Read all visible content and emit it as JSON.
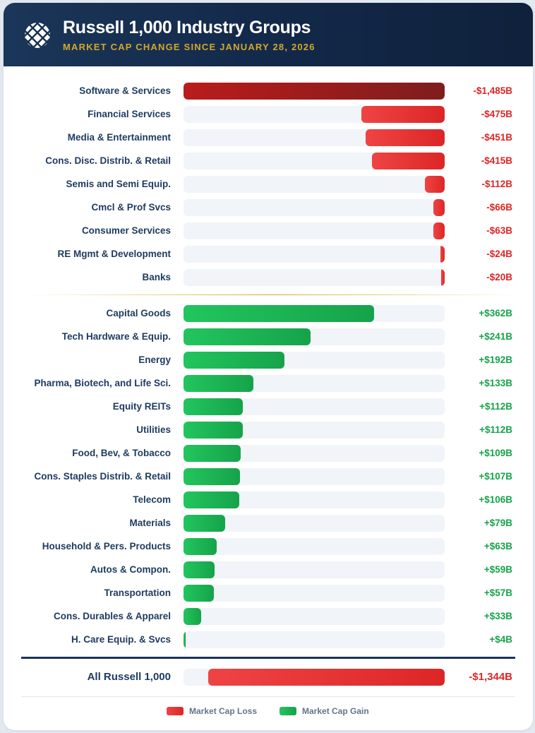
{
  "header": {
    "logo_icon": "woven-lattice-icon",
    "title": "Russell 1,000 Industry Groups",
    "subtitle": "MARKET CAP CHANGE SINCE JANUARY 28, 2026"
  },
  "colors": {
    "header_bg": "#13294a",
    "subtitle_gold": "#d4a72c",
    "loss": "#dc2626",
    "loss_top": "#991b1b",
    "gain": "#16a34a",
    "track": "#f1f4f8",
    "label": "#1e3a5f"
  },
  "chart_data": {
    "type": "bar",
    "orientation": "horizontal",
    "title": "Russell 1,000 Industry Groups",
    "subtitle": "Market Cap Change Since January 28, 2026",
    "units": "USD billions",
    "losses": [
      {
        "category": "Software & Services",
        "value": -1485,
        "label": "-$1,485B"
      },
      {
        "category": "Financial Services",
        "value": -475,
        "label": "-$475B"
      },
      {
        "category": "Media & Entertainment",
        "value": -451,
        "label": "-$451B"
      },
      {
        "category": "Cons. Disc. Distrib. & Retail",
        "value": -415,
        "label": "-$415B"
      },
      {
        "category": "Semis and Semi Equip.",
        "value": -112,
        "label": "-$112B"
      },
      {
        "category": "Cmcl & Prof Svcs",
        "value": -66,
        "label": "-$66B"
      },
      {
        "category": "Consumer Services",
        "value": -63,
        "label": "-$63B"
      },
      {
        "category": "RE Mgmt & Development",
        "value": -24,
        "label": "-$24B"
      },
      {
        "category": "Banks",
        "value": -20,
        "label": "-$20B"
      }
    ],
    "gains": [
      {
        "category": "Capital Goods",
        "value": 362,
        "label": "+$362B"
      },
      {
        "category": "Tech Hardware & Equip.",
        "value": 241,
        "label": "+$241B"
      },
      {
        "category": "Energy",
        "value": 192,
        "label": "+$192B"
      },
      {
        "category": "Pharma, Biotech, and Life Sci.",
        "value": 133,
        "label": "+$133B"
      },
      {
        "category": "Equity REITs",
        "value": 112,
        "label": "+$112B"
      },
      {
        "category": "Utilities",
        "value": 112,
        "label": "+$112B"
      },
      {
        "category": "Food, Bev, & Tobacco",
        "value": 109,
        "label": "+$109B"
      },
      {
        "category": "Cons. Staples Distrib. & Retail",
        "value": 107,
        "label": "+$107B"
      },
      {
        "category": "Telecom",
        "value": 106,
        "label": "+$106B"
      },
      {
        "category": "Materials",
        "value": 79,
        "label": "+$79B"
      },
      {
        "category": "Household & Pers. Products",
        "value": 63,
        "label": "+$63B"
      },
      {
        "category": "Autos & Compon.",
        "value": 59,
        "label": "+$59B"
      },
      {
        "category": "Transportation",
        "value": 57,
        "label": "+$57B"
      },
      {
        "category": "Cons. Durables & Apparel",
        "value": 33,
        "label": "+$33B"
      },
      {
        "category": "H. Care Equip. & Svcs",
        "value": 4,
        "label": "+$4B"
      }
    ],
    "total": {
      "category": "All Russell 1,000",
      "value": -1344,
      "label": "-$1,344B"
    },
    "legend": [
      {
        "key": "loss",
        "label": "Market Cap Loss"
      },
      {
        "key": "gain",
        "label": "Market Cap Gain"
      }
    ],
    "legend_position": "bottom-center",
    "grid": false
  }
}
